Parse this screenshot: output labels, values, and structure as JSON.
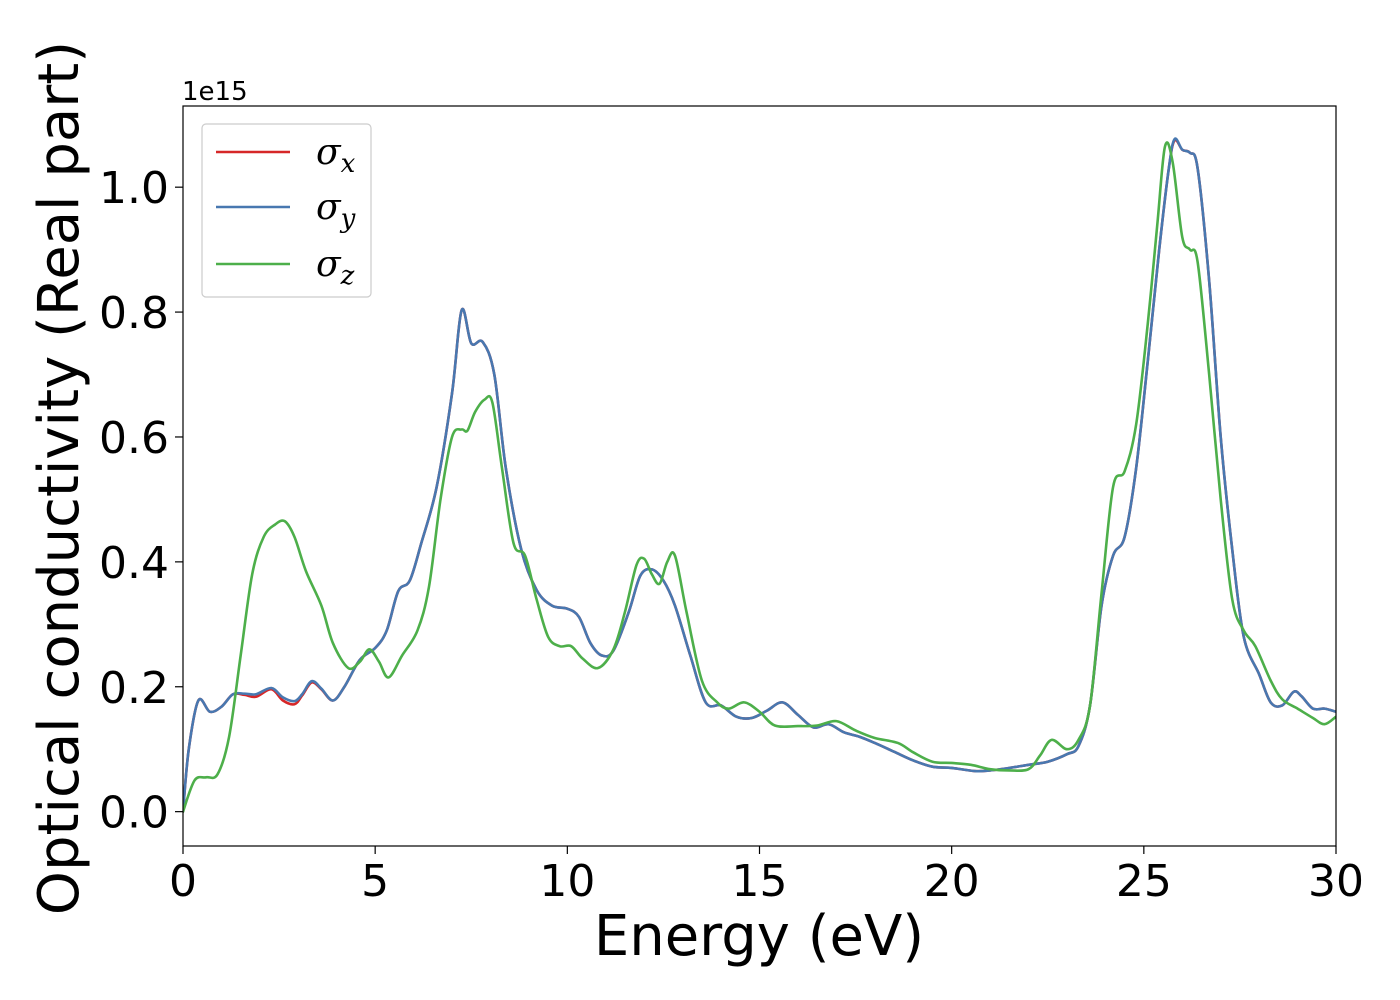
{
  "chart_data": {
    "type": "line",
    "xlabel": "Energy (eV)",
    "ylabel": "Optical conductivity (Real part)",
    "y_offset_text": "1e15",
    "xlim": [
      0,
      30
    ],
    "ylim": [
      -0.055,
      1.13
    ],
    "xticks": [
      0,
      5,
      10,
      15,
      20,
      25,
      30
    ],
    "xtick_labels": [
      "0",
      "5",
      "10",
      "15",
      "20",
      "25",
      "30"
    ],
    "yticks": [
      0.0,
      0.2,
      0.4,
      0.6,
      0.8,
      1.0
    ],
    "ytick_labels": [
      "0.0",
      "0.2",
      "0.4",
      "0.6",
      "0.8",
      "1.0"
    ],
    "grid": false,
    "legend_position": "upper-left",
    "series": [
      {
        "name": "σx",
        "label_base": "σ",
        "label_sub": "x",
        "color": "#d62728",
        "points": [
          [
            0,
            0
          ],
          [
            0.15,
            0.1
          ],
          [
            0.4,
            0.178
          ],
          [
            0.7,
            0.16
          ],
          [
            1.0,
            0.168
          ],
          [
            1.3,
            0.188
          ],
          [
            1.6,
            0.187
          ],
          [
            1.9,
            0.184
          ],
          [
            2.3,
            0.196
          ],
          [
            2.6,
            0.178
          ],
          [
            2.9,
            0.172
          ],
          [
            3.1,
            0.186
          ],
          [
            3.35,
            0.207
          ],
          [
            3.6,
            0.196
          ],
          [
            3.9,
            0.178
          ],
          [
            4.2,
            0.2
          ],
          [
            4.6,
            0.243
          ],
          [
            5.0,
            0.262
          ],
          [
            5.3,
            0.29
          ],
          [
            5.6,
            0.353
          ],
          [
            5.9,
            0.37
          ],
          [
            6.2,
            0.43
          ],
          [
            6.6,
            0.52
          ],
          [
            7.0,
            0.67
          ],
          [
            7.25,
            0.803
          ],
          [
            7.5,
            0.75
          ],
          [
            7.8,
            0.752
          ],
          [
            8.1,
            0.7
          ],
          [
            8.4,
            0.55
          ],
          [
            8.8,
            0.42
          ],
          [
            9.2,
            0.355
          ],
          [
            9.6,
            0.33
          ],
          [
            10.0,
            0.325
          ],
          [
            10.3,
            0.312
          ],
          [
            10.6,
            0.27
          ],
          [
            10.9,
            0.25
          ],
          [
            11.2,
            0.258
          ],
          [
            11.6,
            0.32
          ],
          [
            11.9,
            0.378
          ],
          [
            12.2,
            0.388
          ],
          [
            12.5,
            0.37
          ],
          [
            12.8,
            0.33
          ],
          [
            13.2,
            0.25
          ],
          [
            13.6,
            0.175
          ],
          [
            14.0,
            0.17
          ],
          [
            14.4,
            0.152
          ],
          [
            14.8,
            0.15
          ],
          [
            15.2,
            0.162
          ],
          [
            15.6,
            0.175
          ],
          [
            16.0,
            0.155
          ],
          [
            16.4,
            0.135
          ],
          [
            16.8,
            0.14
          ],
          [
            17.2,
            0.127
          ],
          [
            17.6,
            0.12
          ],
          [
            18.0,
            0.11
          ],
          [
            18.5,
            0.096
          ],
          [
            19.0,
            0.082
          ],
          [
            19.5,
            0.072
          ],
          [
            20.0,
            0.07
          ],
          [
            20.6,
            0.065
          ],
          [
            21.0,
            0.066
          ],
          [
            21.5,
            0.07
          ],
          [
            22.0,
            0.075
          ],
          [
            22.5,
            0.08
          ],
          [
            23.0,
            0.092
          ],
          [
            23.3,
            0.105
          ],
          [
            23.6,
            0.17
          ],
          [
            23.9,
            0.33
          ],
          [
            24.2,
            0.41
          ],
          [
            24.5,
            0.44
          ],
          [
            24.8,
            0.55
          ],
          [
            25.1,
            0.72
          ],
          [
            25.4,
            0.9
          ],
          [
            25.65,
            1.03
          ],
          [
            25.8,
            1.075
          ],
          [
            26.0,
            1.06
          ],
          [
            26.2,
            1.055
          ],
          [
            26.4,
            1.03
          ],
          [
            26.7,
            0.85
          ],
          [
            27.0,
            0.6
          ],
          [
            27.3,
            0.42
          ],
          [
            27.6,
            0.28
          ],
          [
            28.0,
            0.22
          ],
          [
            28.3,
            0.175
          ],
          [
            28.6,
            0.17
          ],
          [
            28.9,
            0.192
          ],
          [
            29.1,
            0.185
          ],
          [
            29.4,
            0.165
          ],
          [
            29.7,
            0.165
          ],
          [
            30.0,
            0.16
          ]
        ]
      },
      {
        "name": "σy",
        "label_base": "σ",
        "label_sub": "y",
        "color": "#4878b0",
        "points": [
          [
            0,
            0
          ],
          [
            0.15,
            0.1
          ],
          [
            0.4,
            0.178
          ],
          [
            0.7,
            0.16
          ],
          [
            1.0,
            0.168
          ],
          [
            1.3,
            0.188
          ],
          [
            1.6,
            0.189
          ],
          [
            1.9,
            0.188
          ],
          [
            2.3,
            0.198
          ],
          [
            2.6,
            0.183
          ],
          [
            2.9,
            0.177
          ],
          [
            3.1,
            0.188
          ],
          [
            3.35,
            0.209
          ],
          [
            3.6,
            0.197
          ],
          [
            3.9,
            0.178
          ],
          [
            4.2,
            0.2
          ],
          [
            4.6,
            0.243
          ],
          [
            5.0,
            0.262
          ],
          [
            5.3,
            0.29
          ],
          [
            5.6,
            0.353
          ],
          [
            5.9,
            0.37
          ],
          [
            6.2,
            0.43
          ],
          [
            6.6,
            0.52
          ],
          [
            7.0,
            0.67
          ],
          [
            7.25,
            0.803
          ],
          [
            7.5,
            0.75
          ],
          [
            7.8,
            0.752
          ],
          [
            8.1,
            0.7
          ],
          [
            8.4,
            0.55
          ],
          [
            8.8,
            0.42
          ],
          [
            9.2,
            0.355
          ],
          [
            9.6,
            0.33
          ],
          [
            10.0,
            0.325
          ],
          [
            10.3,
            0.312
          ],
          [
            10.6,
            0.27
          ],
          [
            10.9,
            0.25
          ],
          [
            11.2,
            0.258
          ],
          [
            11.6,
            0.32
          ],
          [
            11.9,
            0.378
          ],
          [
            12.2,
            0.388
          ],
          [
            12.5,
            0.37
          ],
          [
            12.8,
            0.33
          ],
          [
            13.2,
            0.25
          ],
          [
            13.6,
            0.175
          ],
          [
            14.0,
            0.17
          ],
          [
            14.4,
            0.152
          ],
          [
            14.8,
            0.15
          ],
          [
            15.2,
            0.162
          ],
          [
            15.6,
            0.175
          ],
          [
            16.0,
            0.155
          ],
          [
            16.4,
            0.135
          ],
          [
            16.8,
            0.14
          ],
          [
            17.2,
            0.127
          ],
          [
            17.6,
            0.12
          ],
          [
            18.0,
            0.11
          ],
          [
            18.5,
            0.096
          ],
          [
            19.0,
            0.082
          ],
          [
            19.5,
            0.072
          ],
          [
            20.0,
            0.07
          ],
          [
            20.6,
            0.065
          ],
          [
            21.0,
            0.066
          ],
          [
            21.5,
            0.07
          ],
          [
            22.0,
            0.075
          ],
          [
            22.5,
            0.08
          ],
          [
            23.0,
            0.092
          ],
          [
            23.3,
            0.105
          ],
          [
            23.6,
            0.17
          ],
          [
            23.9,
            0.33
          ],
          [
            24.2,
            0.41
          ],
          [
            24.5,
            0.44
          ],
          [
            24.8,
            0.55
          ],
          [
            25.1,
            0.72
          ],
          [
            25.4,
            0.9
          ],
          [
            25.65,
            1.03
          ],
          [
            25.8,
            1.077
          ],
          [
            26.0,
            1.06
          ],
          [
            26.2,
            1.055
          ],
          [
            26.4,
            1.03
          ],
          [
            26.7,
            0.85
          ],
          [
            27.0,
            0.6
          ],
          [
            27.3,
            0.42
          ],
          [
            27.6,
            0.28
          ],
          [
            28.0,
            0.22
          ],
          [
            28.3,
            0.175
          ],
          [
            28.6,
            0.17
          ],
          [
            28.9,
            0.192
          ],
          [
            29.1,
            0.185
          ],
          [
            29.4,
            0.165
          ],
          [
            29.7,
            0.165
          ],
          [
            30.0,
            0.16
          ]
        ]
      },
      {
        "name": "σz",
        "label_base": "σ",
        "label_sub": "z",
        "color": "#4daf4a",
        "points": [
          [
            0,
            0
          ],
          [
            0.3,
            0.05
          ],
          [
            0.6,
            0.055
          ],
          [
            0.9,
            0.06
          ],
          [
            1.2,
            0.12
          ],
          [
            1.5,
            0.25
          ],
          [
            1.8,
            0.38
          ],
          [
            2.1,
            0.44
          ],
          [
            2.4,
            0.46
          ],
          [
            2.65,
            0.465
          ],
          [
            2.9,
            0.44
          ],
          [
            3.2,
            0.385
          ],
          [
            3.6,
            0.33
          ],
          [
            3.9,
            0.27
          ],
          [
            4.3,
            0.23
          ],
          [
            4.6,
            0.24
          ],
          [
            4.85,
            0.26
          ],
          [
            5.1,
            0.24
          ],
          [
            5.35,
            0.215
          ],
          [
            5.7,
            0.25
          ],
          [
            6.1,
            0.29
          ],
          [
            6.4,
            0.36
          ],
          [
            6.7,
            0.5
          ],
          [
            7.0,
            0.6
          ],
          [
            7.25,
            0.612
          ],
          [
            7.4,
            0.61
          ],
          [
            7.6,
            0.64
          ],
          [
            7.85,
            0.66
          ],
          [
            8.05,
            0.655
          ],
          [
            8.3,
            0.55
          ],
          [
            8.6,
            0.43
          ],
          [
            8.9,
            0.41
          ],
          [
            9.2,
            0.34
          ],
          [
            9.5,
            0.28
          ],
          [
            9.8,
            0.265
          ],
          [
            10.1,
            0.265
          ],
          [
            10.4,
            0.245
          ],
          [
            10.8,
            0.23
          ],
          [
            11.2,
            0.26
          ],
          [
            11.5,
            0.32
          ],
          [
            11.8,
            0.395
          ],
          [
            12.0,
            0.405
          ],
          [
            12.2,
            0.38
          ],
          [
            12.4,
            0.365
          ],
          [
            12.6,
            0.4
          ],
          [
            12.8,
            0.41
          ],
          [
            13.1,
            0.32
          ],
          [
            13.5,
            0.21
          ],
          [
            13.9,
            0.175
          ],
          [
            14.2,
            0.165
          ],
          [
            14.6,
            0.175
          ],
          [
            15.0,
            0.16
          ],
          [
            15.4,
            0.138
          ],
          [
            16.0,
            0.137
          ],
          [
            16.5,
            0.138
          ],
          [
            17.0,
            0.145
          ],
          [
            17.5,
            0.13
          ],
          [
            18.0,
            0.118
          ],
          [
            18.6,
            0.11
          ],
          [
            19.0,
            0.095
          ],
          [
            19.5,
            0.08
          ],
          [
            20.0,
            0.078
          ],
          [
            20.5,
            0.075
          ],
          [
            21.0,
            0.068
          ],
          [
            21.5,
            0.066
          ],
          [
            22.0,
            0.068
          ],
          [
            22.3,
            0.09
          ],
          [
            22.6,
            0.115
          ],
          [
            23.0,
            0.1
          ],
          [
            23.3,
            0.115
          ],
          [
            23.6,
            0.17
          ],
          [
            23.9,
            0.35
          ],
          [
            24.2,
            0.52
          ],
          [
            24.5,
            0.545
          ],
          [
            24.8,
            0.62
          ],
          [
            25.1,
            0.78
          ],
          [
            25.35,
            0.94
          ],
          [
            25.55,
            1.065
          ],
          [
            25.75,
            1.04
          ],
          [
            26.0,
            0.92
          ],
          [
            26.2,
            0.9
          ],
          [
            26.4,
            0.88
          ],
          [
            26.7,
            0.7
          ],
          [
            27.0,
            0.5
          ],
          [
            27.3,
            0.34
          ],
          [
            27.6,
            0.29
          ],
          [
            27.9,
            0.265
          ],
          [
            28.3,
            0.21
          ],
          [
            28.6,
            0.18
          ],
          [
            29.0,
            0.165
          ],
          [
            29.4,
            0.15
          ],
          [
            29.7,
            0.14
          ],
          [
            30.0,
            0.152
          ]
        ]
      }
    ]
  }
}
